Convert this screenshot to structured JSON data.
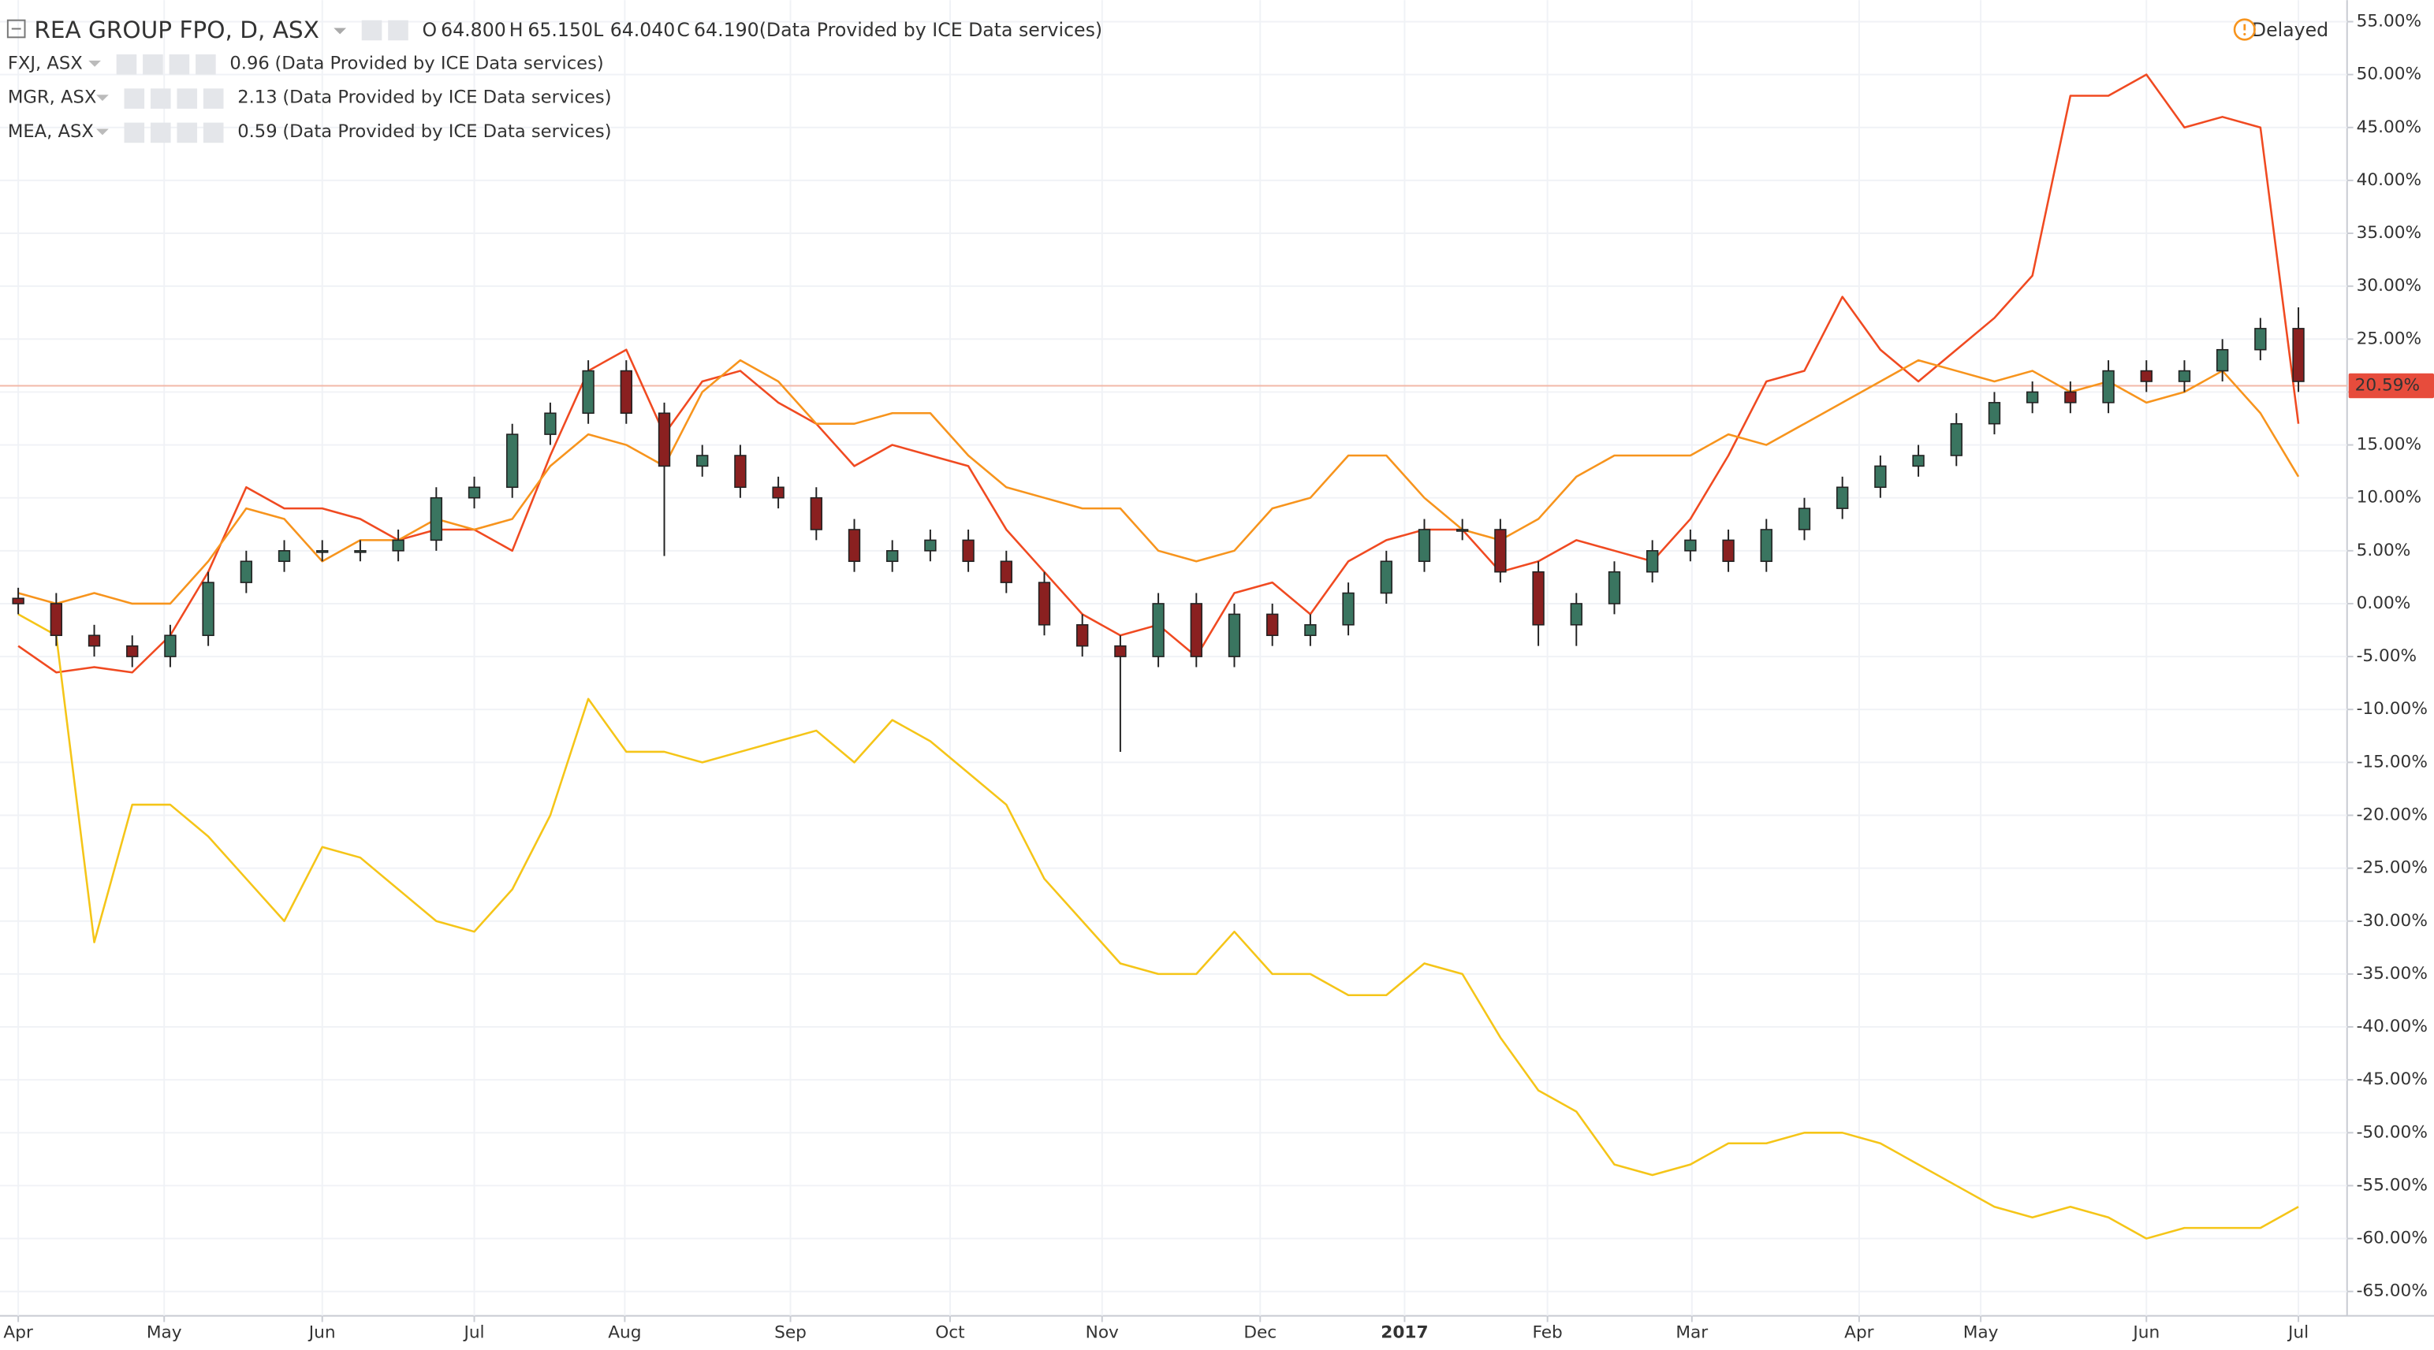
{
  "chart_data": {
    "type": "candlestick",
    "title": "REA GROUP FPO, D, ASX",
    "ohlc_header": [
      {
        "key": "O",
        "value": "64.800"
      },
      {
        "key": "H",
        "value": "65.150"
      },
      {
        "key": "L",
        "value": "64.040"
      },
      {
        "key": "C",
        "value": "64.190"
      }
    ],
    "source_note": "(Data Provided by ICE Data services)",
    "status": "Delayed",
    "x": [
      0,
      0.25,
      0.5,
      0.75,
      1,
      1.25,
      1.5,
      1.75,
      2,
      2.25,
      2.5,
      2.75,
      3,
      3.25,
      3.5,
      3.75,
      4,
      4.25,
      4.5,
      4.75,
      5,
      5.25,
      5.5,
      5.75,
      6,
      6.25,
      6.5,
      6.75,
      7,
      7.25,
      7.5,
      7.75,
      8,
      8.25,
      8.5,
      8.75,
      9,
      9.25,
      9.5,
      9.75,
      10,
      10.25,
      10.5,
      10.75,
      11,
      11.25,
      11.5,
      11.75,
      12,
      12.25,
      12.5,
      12.75,
      13,
      13.25,
      13.5,
      13.75,
      14,
      14.25,
      14.5,
      14.75,
      15
    ],
    "xlim": [
      -0.12,
      15.32
    ],
    "xticks": [
      {
        "value": 0,
        "label": "Apr"
      },
      {
        "value": 0.96,
        "label": "May"
      },
      {
        "value": 2.0,
        "label": "Jun"
      },
      {
        "value": 3.0,
        "label": "Jul"
      },
      {
        "value": 3.99,
        "label": "Aug"
      },
      {
        "value": 5.08,
        "label": "Sep"
      },
      {
        "value": 6.13,
        "label": "Oct"
      },
      {
        "value": 7.13,
        "label": "Nov"
      },
      {
        "value": 8.17,
        "label": "Dec"
      },
      {
        "value": 9.12,
        "label": "2017"
      },
      {
        "value": 10.06,
        "label": "Feb"
      },
      {
        "value": 11.01,
        "label": "Mar"
      },
      {
        "value": 12.11,
        "label": "Apr"
      },
      {
        "value": 12.91,
        "label": "May"
      },
      {
        "value": 14.0,
        "label": "Jun"
      },
      {
        "value": 15.0,
        "label": "Jul"
      }
    ],
    "ylim": [
      -67.3,
      57.04
    ],
    "yticks": [
      {
        "value": 55,
        "label": "55.00%"
      },
      {
        "value": 50,
        "label": "50.00%"
      },
      {
        "value": 45,
        "label": "45.00%"
      },
      {
        "value": 40,
        "label": "40.00%"
      },
      {
        "value": 35,
        "label": "35.00%"
      },
      {
        "value": 30,
        "label": "30.00%"
      },
      {
        "value": 25,
        "label": "25.00%"
      },
      {
        "value": 20,
        "label": "20.00%"
      },
      {
        "value": 15,
        "label": "15.00%"
      },
      {
        "value": 10,
        "label": "10.00%"
      },
      {
        "value": 5,
        "label": "5.00%"
      },
      {
        "value": 0,
        "label": "0.00%"
      },
      {
        "value": -5,
        "label": "-5.00%"
      },
      {
        "value": -10,
        "label": "-10.00%"
      },
      {
        "value": -15,
        "label": "-15.00%"
      },
      {
        "value": -20,
        "label": "-20.00%"
      },
      {
        "value": -25,
        "label": "-25.00%"
      },
      {
        "value": -30,
        "label": "-30.00%"
      },
      {
        "value": -35,
        "label": "-35.00%"
      },
      {
        "value": -40,
        "label": "-40.00%"
      },
      {
        "value": -45,
        "label": "-45.00%"
      },
      {
        "value": -50,
        "label": "-50.00%"
      },
      {
        "value": -55,
        "label": "-55.00%"
      },
      {
        "value": -60,
        "label": "-60.00%"
      },
      {
        "value": -65,
        "label": "-65.00%"
      }
    ],
    "grid": true,
    "candles": {
      "up_color": "#3a7560",
      "down_color": "#8a2020",
      "open": [
        0.5,
        0,
        -3,
        -4,
        -5,
        -3,
        2,
        4,
        5,
        5,
        5,
        6,
        10,
        11,
        16,
        18,
        22,
        18,
        13,
        14,
        11,
        10,
        7,
        4,
        5,
        6,
        4,
        2,
        -2,
        -4,
        -5,
        0,
        -5,
        -1,
        -3,
        -2,
        1,
        4,
        7,
        7,
        3,
        -2,
        0,
        3,
        5,
        6,
        4,
        7,
        9,
        11,
        13,
        14,
        17,
        19,
        20,
        19,
        22,
        21,
        22,
        24,
        26
      ],
      "high": [
        1.5,
        1,
        -2,
        -3,
        -2,
        3,
        5,
        6,
        6,
        6,
        7,
        11,
        12,
        17,
        19,
        23,
        23,
        19,
        15,
        15,
        12,
        11,
        8,
        6,
        7,
        7,
        5,
        3,
        -1,
        -3,
        1,
        1,
        0,
        0,
        -1,
        2,
        5,
        8,
        8,
        8,
        4,
        1,
        4,
        6,
        7,
        7,
        8,
        10,
        12,
        14,
        15,
        18,
        20,
        21,
        21,
        23,
        23,
        23,
        25,
        27,
        28
      ],
      "low": [
        -1,
        -4,
        -5,
        -6,
        -6,
        -4,
        1,
        3,
        4,
        4,
        4,
        5,
        9,
        10,
        15,
        17,
        17,
        4.5,
        12,
        10,
        9,
        6,
        3,
        3,
        4,
        3,
        1,
        -3,
        -5,
        -14,
        -6,
        -6,
        -6,
        -4,
        -4,
        -3,
        0,
        3,
        6,
        2,
        -4,
        -4,
        -1,
        2,
        4,
        3,
        3,
        6,
        8,
        10,
        12,
        13,
        16,
        18,
        18,
        18,
        20,
        20,
        21,
        23,
        20
      ],
      "close": [
        0,
        -3,
        -4,
        -5,
        -3,
        2,
        4,
        5,
        5,
        5,
        6,
        10,
        11,
        16,
        18,
        22,
        18,
        13,
        14,
        11,
        10,
        7,
        4,
        5,
        6,
        4,
        2,
        -2,
        -4,
        -5,
        0,
        -5,
        -1,
        -3,
        -2,
        1,
        4,
        7,
        7,
        3,
        -2,
        0,
        3,
        5,
        6,
        4,
        7,
        9,
        11,
        13,
        14,
        17,
        19,
        20,
        19,
        22,
        21,
        22,
        24,
        26,
        21
      ]
    },
    "series": [
      {
        "name": "FXJ, ASX",
        "color": "#f04a21",
        "last_value": 0.96,
        "values": [
          -4,
          -6.5,
          -6,
          -6.5,
          -3,
          3,
          11,
          9,
          9,
          8,
          6,
          7,
          7,
          5,
          14,
          22,
          24,
          16,
          21,
          22,
          19,
          17,
          13,
          15,
          14,
          13,
          7,
          3,
          -1,
          -3,
          -2,
          -5,
          1,
          2,
          -1,
          4,
          6,
          7,
          7,
          3,
          4,
          6,
          5,
          4,
          8,
          14,
          21,
          22,
          29,
          24,
          21,
          24,
          27,
          31,
          48,
          48,
          50,
          45,
          46,
          45,
          17
        ]
      },
      {
        "name": "MGR, ASX",
        "color": "#f7941d",
        "last_value": 2.13,
        "values": [
          1,
          0,
          1,
          0,
          0,
          4,
          9,
          8,
          4,
          6,
          6,
          8,
          7,
          8,
          13,
          16,
          15,
          13,
          20,
          23,
          21,
          17,
          17,
          18,
          18,
          14,
          11,
          10,
          9,
          9,
          5,
          4,
          5,
          9,
          10,
          14,
          14,
          10,
          7,
          6,
          8,
          12,
          14,
          14,
          14,
          16,
          15,
          17,
          19,
          21,
          23,
          22,
          21,
          22,
          20,
          21,
          19,
          20,
          22,
          18,
          12
        ]
      },
      {
        "name": "MEA, ASX",
        "color": "#f5c518",
        "last_value": 0.59,
        "values": [
          -1,
          -3,
          -32,
          -19,
          -19,
          -22,
          -26,
          -30,
          -23,
          -24,
          -27,
          -30,
          -31,
          -27,
          -20,
          -9,
          -14,
          -14,
          -15,
          -14,
          -13,
          -12,
          -15,
          -11,
          -13,
          -16,
          -19,
          -26,
          -30,
          -34,
          -35,
          -35,
          -31,
          -35,
          -35,
          -37,
          -37,
          -34,
          -35,
          -41,
          -46,
          -48,
          -53,
          -54,
          -53,
          -51,
          -51,
          -50,
          -50,
          -51,
          -53,
          -55,
          -57,
          -58,
          -57,
          -58,
          -60,
          -59,
          -59,
          -59,
          -57
        ]
      }
    ],
    "last_value_label": {
      "value": 20.59,
      "label": "20.59%"
    }
  }
}
